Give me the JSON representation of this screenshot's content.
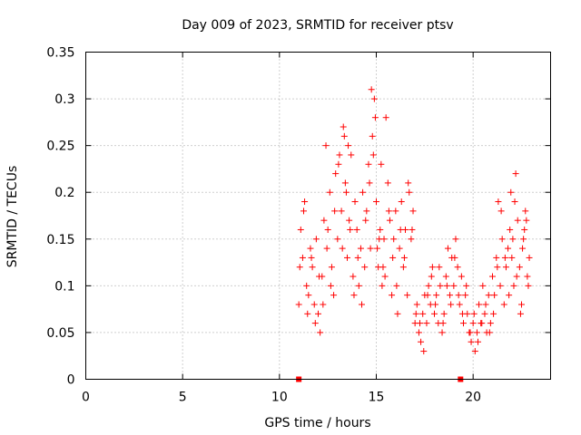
{
  "chart_data": {
    "type": "scatter",
    "title": "Day 009 of 2023, SRMTID for receiver ptsv",
    "xlabel": "GPS time / hours",
    "ylabel": "SRMTID / TECUs",
    "xlim": [
      0,
      24
    ],
    "ylim": [
      0,
      0.35
    ],
    "xticks": [
      0,
      5,
      10,
      15,
      20
    ],
    "xtick_labels": [
      "0",
      "5",
      "10",
      "15",
      "20"
    ],
    "yticks": [
      0,
      0.05,
      0.1,
      0.15,
      0.2,
      0.25,
      0.3,
      0.35
    ],
    "ytick_labels": [
      "0",
      "0.05",
      "0.1",
      "0.15",
      "0.2",
      "0.25",
      "0.3",
      "0.35"
    ],
    "grid": true,
    "marker": "+",
    "color": "#ff0000",
    "series": [
      {
        "name": "SRMTID",
        "x": [
          11.0,
          11.1,
          11.2,
          11.3,
          11.4,
          11.5,
          11.6,
          11.7,
          11.8,
          11.9,
          12.0,
          12.1,
          12.2,
          12.3,
          12.4,
          12.5,
          12.6,
          12.7,
          12.8,
          12.9,
          13.0,
          13.1,
          13.2,
          13.3,
          13.4,
          13.5,
          13.6,
          13.7,
          13.8,
          13.9,
          14.0,
          14.1,
          14.2,
          14.3,
          14.4,
          14.5,
          14.6,
          14.7,
          14.8,
          14.9,
          15.0,
          15.1,
          15.2,
          15.3,
          15.4,
          15.5,
          15.6,
          15.7,
          15.8,
          15.9,
          16.0,
          16.1,
          16.2,
          16.3,
          16.4,
          16.5,
          16.6,
          16.7,
          16.8,
          16.9,
          17.0,
          17.1,
          17.2,
          17.3,
          17.4,
          17.5,
          17.6,
          17.7,
          17.8,
          17.9,
          18.0,
          18.1,
          18.2,
          18.3,
          18.4,
          18.5,
          18.6,
          18.7,
          18.8,
          18.9,
          19.0,
          19.1,
          19.2,
          19.3,
          19.4,
          19.5,
          19.6,
          19.7,
          19.8,
          19.9,
          20.0,
          20.1,
          20.2,
          20.3,
          20.4,
          20.5,
          20.6,
          20.7,
          20.8,
          20.9,
          21.0,
          21.1,
          21.2,
          21.3,
          21.4,
          21.5,
          21.6,
          21.7,
          21.8,
          21.9,
          22.0,
          22.1,
          22.2,
          22.3,
          22.4,
          22.5,
          22.6,
          22.7,
          22.8,
          22.9,
          11.05,
          11.25,
          11.45,
          11.65,
          11.85,
          12.05,
          12.25,
          12.45,
          12.65,
          12.85,
          13.05,
          13.25,
          13.45,
          13.65,
          13.85,
          14.05,
          14.25,
          14.45,
          14.65,
          14.85,
          15.05,
          15.25,
          15.45,
          15.65,
          15.85,
          16.05,
          16.25,
          16.45,
          16.65,
          16.85,
          17.05,
          17.25,
          17.45,
          17.65,
          17.85,
          18.05,
          18.25,
          18.45,
          18.65,
          18.85,
          19.05,
          19.25,
          19.45,
          19.65,
          19.85,
          20.05,
          20.25,
          20.45,
          20.65,
          20.85,
          21.05,
          21.25,
          21.45,
          21.65,
          21.85,
          22.05,
          22.25,
          22.45,
          22.65,
          22.85,
          13.35,
          13.55,
          14.75,
          14.95,
          15.15,
          15.35,
          21.95,
          22.15,
          22.55,
          22.75
        ],
        "y": [
          0.08,
          0.16,
          0.13,
          0.19,
          0.1,
          0.09,
          0.14,
          0.12,
          0.08,
          0.15,
          0.07,
          0.05,
          0.11,
          0.17,
          0.25,
          0.16,
          0.2,
          0.12,
          0.09,
          0.22,
          0.15,
          0.24,
          0.18,
          0.27,
          0.21,
          0.13,
          0.17,
          0.24,
          0.11,
          0.19,
          0.16,
          0.1,
          0.14,
          0.2,
          0.12,
          0.18,
          0.23,
          0.14,
          0.26,
          0.3,
          0.19,
          0.12,
          0.16,
          0.1,
          0.15,
          0.28,
          0.21,
          0.17,
          0.09,
          0.15,
          0.18,
          0.07,
          0.14,
          0.19,
          0.12,
          0.16,
          0.09,
          0.2,
          0.15,
          0.18,
          0.06,
          0.08,
          0.05,
          0.04,
          0.07,
          0.09,
          0.06,
          0.1,
          0.08,
          0.12,
          0.07,
          0.09,
          0.06,
          0.1,
          0.05,
          0.07,
          0.11,
          0.14,
          0.09,
          0.13,
          0.1,
          0.15,
          0.12,
          0.08,
          0.11,
          0.06,
          0.09,
          0.07,
          0.05,
          0.04,
          0.06,
          0.03,
          0.05,
          0.08,
          0.06,
          0.1,
          0.07,
          0.05,
          0.09,
          0.06,
          0.11,
          0.09,
          0.13,
          0.19,
          0.1,
          0.15,
          0.08,
          0.12,
          0.14,
          0.16,
          0.13,
          0.1,
          0.22,
          0.17,
          0.12,
          0.08,
          0.15,
          0.18,
          0.11,
          0.13,
          0.12,
          0.18,
          0.07,
          0.13,
          0.06,
          0.11,
          0.08,
          0.14,
          0.1,
          0.18,
          0.23,
          0.14,
          0.2,
          0.16,
          0.09,
          0.13,
          0.08,
          0.17,
          0.21,
          0.24,
          0.14,
          0.23,
          0.11,
          0.18,
          0.13,
          0.1,
          0.16,
          0.13,
          0.21,
          0.16,
          0.07,
          0.06,
          0.03,
          0.09,
          0.11,
          0.08,
          0.12,
          0.06,
          0.1,
          0.08,
          0.13,
          0.09,
          0.07,
          0.1,
          0.05,
          0.07,
          0.04,
          0.06,
          0.08,
          0.05,
          0.07,
          0.12,
          0.18,
          0.13,
          0.09,
          0.15,
          0.11,
          0.07,
          0.16,
          0.1,
          0.26,
          0.25,
          0.31,
          0.28,
          0.15,
          0.12,
          0.2,
          0.19,
          0.14,
          0.17
        ]
      }
    ],
    "zero_markers_x": [
      11.0,
      19.35
    ]
  }
}
